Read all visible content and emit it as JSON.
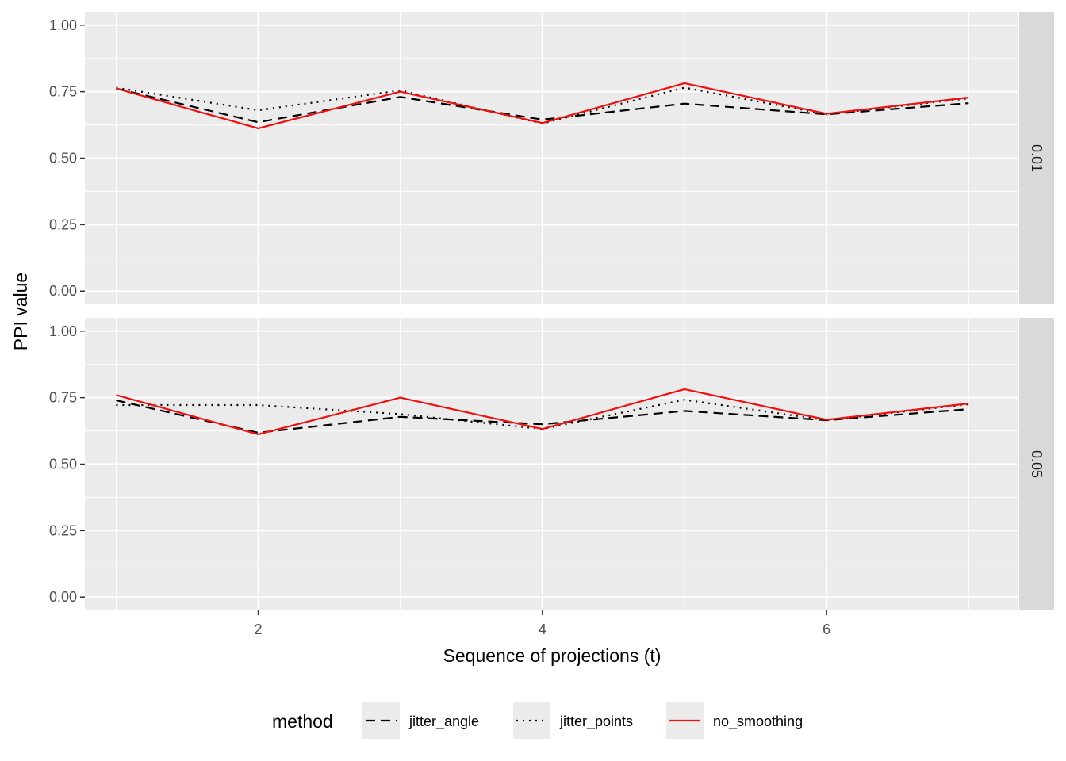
{
  "chart_data": {
    "type": "line",
    "xlabel": "Sequence of projections (t)",
    "ylabel": "PPI value",
    "xlim": [
      0.78,
      7.35
    ],
    "ylim": [
      -0.05,
      1.05
    ],
    "x_ticks": [
      2,
      4,
      6
    ],
    "y_ticks": [
      "0.00",
      "0.25",
      "0.50",
      "0.75",
      "1.00"
    ],
    "grid": true,
    "facet_by_row": true,
    "legend": {
      "title": "method",
      "position": "bottom",
      "entries": [
        "jitter_angle",
        "jitter_points",
        "no_smoothing"
      ]
    },
    "series_styles": {
      "jitter_angle": {
        "color": "#000000",
        "dash": "12,7"
      },
      "jitter_points": {
        "color": "#000000",
        "dash": "2,6"
      },
      "no_smoothing": {
        "color": "#ee1111",
        "dash": ""
      }
    },
    "panels": [
      {
        "strip": "0.01",
        "x": [
          1,
          2,
          3,
          4,
          5,
          6,
          7
        ],
        "series": [
          {
            "name": "jitter_angle",
            "values": [
              0.762,
              0.635,
              0.73,
              0.645,
              0.705,
              0.665,
              0.707
            ]
          },
          {
            "name": "jitter_points",
            "values": [
              0.765,
              0.68,
              0.755,
              0.63,
              0.765,
              0.665,
              0.725
            ]
          },
          {
            "name": "no_smoothing",
            "values": [
              0.762,
              0.612,
              0.75,
              0.632,
              0.782,
              0.667,
              0.728
            ]
          }
        ]
      },
      {
        "strip": "0.05",
        "x": [
          1,
          2,
          3,
          4,
          5,
          6,
          7
        ],
        "series": [
          {
            "name": "jitter_angle",
            "values": [
              0.74,
              0.618,
              0.678,
              0.65,
              0.7,
              0.665,
              0.707
            ]
          },
          {
            "name": "jitter_points",
            "values": [
              0.722,
              0.722,
              0.688,
              0.632,
              0.742,
              0.665,
              0.725
            ]
          },
          {
            "name": "no_smoothing",
            "values": [
              0.76,
              0.612,
              0.75,
              0.632,
              0.782,
              0.667,
              0.728
            ]
          }
        ]
      }
    ]
  }
}
